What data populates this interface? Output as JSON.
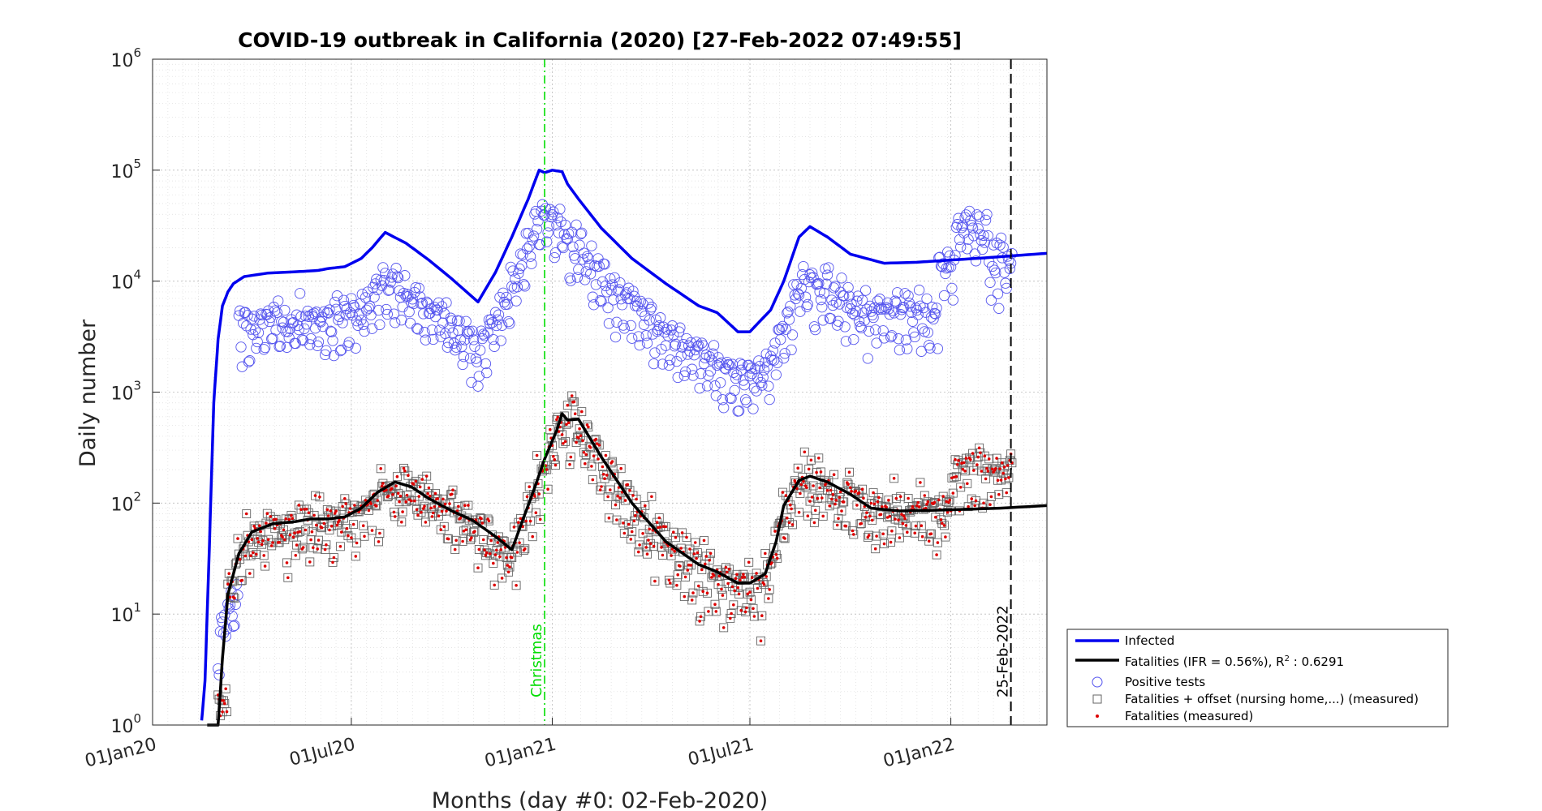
{
  "chart_data": {
    "type": "line",
    "title": "COVID-19 outbreak in California (2020) [27-Feb-2022 07:49:55]",
    "xlabel": "Months (day #0: 02-Feb-2020)",
    "ylabel": "Daily number",
    "xlim": [
      "2020-01-01",
      "2022-03-30"
    ],
    "ylim": [
      1,
      1000000
    ],
    "yscale": "log",
    "grid": true,
    "x_ticks": [
      "2020-01-01",
      "2020-07-01",
      "2021-01-01",
      "2021-07-01",
      "2022-01-01"
    ],
    "x_tick_labels": [
      "01Jan20",
      "01Jul20",
      "01Jan21",
      "01Jul21",
      "01Jan22"
    ],
    "y_ticks": [
      1,
      10,
      100,
      1000,
      10000,
      100000,
      1000000
    ],
    "y_tick_labels": [
      {
        "base": "10",
        "exp": "0"
      },
      {
        "base": "10",
        "exp": "1"
      },
      {
        "base": "10",
        "exp": "2"
      },
      {
        "base": "10",
        "exp": "3"
      },
      {
        "base": "10",
        "exp": "4"
      },
      {
        "base": "10",
        "exp": "5"
      },
      {
        "base": "10",
        "exp": "6"
      }
    ],
    "legend_position": "bottom-right outside",
    "colors": {
      "infected": "#0000ee",
      "fatalities_fit": "#000000",
      "positive_tests": "#5555ee",
      "fatalities_offset": "#666666",
      "fatalities_measured": "#dd0000",
      "christmas": "#00dd00",
      "today": "#000000"
    },
    "annotations": {
      "christmas": {
        "date": "2020-12-25",
        "label": "Christmas"
      },
      "today": {
        "date": "2022-02-25",
        "label": "25-Feb-2022"
      }
    },
    "series": [
      {
        "name": "Infected",
        "style": "line",
        "x": [
          "2020-02-15",
          "2020-02-18",
          "2020-02-22",
          "2020-02-26",
          "2020-03-01",
          "2020-03-05",
          "2020-03-10",
          "2020-03-15",
          "2020-03-25",
          "2020-04-15",
          "2020-05-15",
          "2020-06-01",
          "2020-06-10",
          "2020-06-25",
          "2020-07-10",
          "2020-07-20",
          "2020-08-01",
          "2020-08-20",
          "2020-09-10",
          "2020-10-01",
          "2020-10-25",
          "2020-11-10",
          "2020-11-25",
          "2020-12-10",
          "2020-12-20",
          "2020-12-25",
          "2021-01-01",
          "2021-01-10",
          "2021-01-15",
          "2021-01-25",
          "2021-02-15",
          "2021-03-15",
          "2021-04-15",
          "2021-05-15",
          "2021-06-01",
          "2021-06-20",
          "2021-07-01",
          "2021-07-20",
          "2021-08-01",
          "2021-08-15",
          "2021-08-25",
          "2021-09-10",
          "2021-10-01",
          "2021-11-01",
          "2021-12-01",
          "2022-01-01",
          "2022-02-01",
          "2022-03-01",
          "2022-03-30"
        ],
        "y": [
          1.1,
          2.5,
          40,
          800,
          3000,
          6000,
          8000,
          9500,
          11000,
          11800,
          12200,
          12500,
          13000,
          13500,
          16000,
          20000,
          27500,
          22000,
          15500,
          10500,
          6500,
          12000,
          25000,
          55000,
          100000,
          95000,
          100000,
          97000,
          75000,
          55000,
          30000,
          16000,
          9500,
          6000,
          5200,
          3500,
          3500,
          5500,
          10000,
          25000,
          31000,
          25000,
          17500,
          14500,
          14800,
          15500,
          16200,
          17000,
          17800
        ]
      },
      {
        "name": "Fatalities (IFR = 0.56%), R",
        "name_sup": "2",
        "name_tail": " : 0.6291",
        "style": "line",
        "x": [
          "2020-02-20",
          "2020-03-01",
          "2020-03-05",
          "2020-03-10",
          "2020-03-20",
          "2020-04-01",
          "2020-04-20",
          "2020-05-10",
          "2020-05-25",
          "2020-06-10",
          "2020-06-25",
          "2020-07-10",
          "2020-07-25",
          "2020-08-10",
          "2020-08-25",
          "2020-09-10",
          "2020-10-01",
          "2020-10-20",
          "2020-11-10",
          "2020-11-25",
          "2020-12-15",
          "2020-12-25",
          "2021-01-05",
          "2021-01-10",
          "2021-01-15",
          "2021-01-25",
          "2021-02-15",
          "2021-03-15",
          "2021-04-15",
          "2021-05-15",
          "2021-06-01",
          "2021-06-20",
          "2021-07-01",
          "2021-07-15",
          "2021-07-25",
          "2021-08-01",
          "2021-08-15",
          "2021-08-25",
          "2021-09-10",
          "2021-10-01",
          "2021-10-20",
          "2021-11-15",
          "2021-12-15",
          "2022-01-15",
          "2022-02-15",
          "2022-03-30"
        ],
        "y": [
          1,
          1,
          4,
          15,
          35,
          55,
          65,
          68,
          72,
          72,
          75,
          90,
          125,
          155,
          140,
          110,
          85,
          70,
          50,
          38,
          130,
          250,
          450,
          640,
          560,
          570,
          260,
          100,
          45,
          28,
          24,
          19,
          19,
          23,
          45,
          95,
          160,
          175,
          155,
          120,
          90,
          85,
          86,
          88,
          90,
          95
        ]
      },
      {
        "name": "Positive tests",
        "style": "marker-circle"
      },
      {
        "name": "Fatalities + offset (nursing home,...) (measured)",
        "style": "marker-square"
      },
      {
        "name": "Fatalities (measured)",
        "style": "marker-dot"
      }
    ]
  }
}
